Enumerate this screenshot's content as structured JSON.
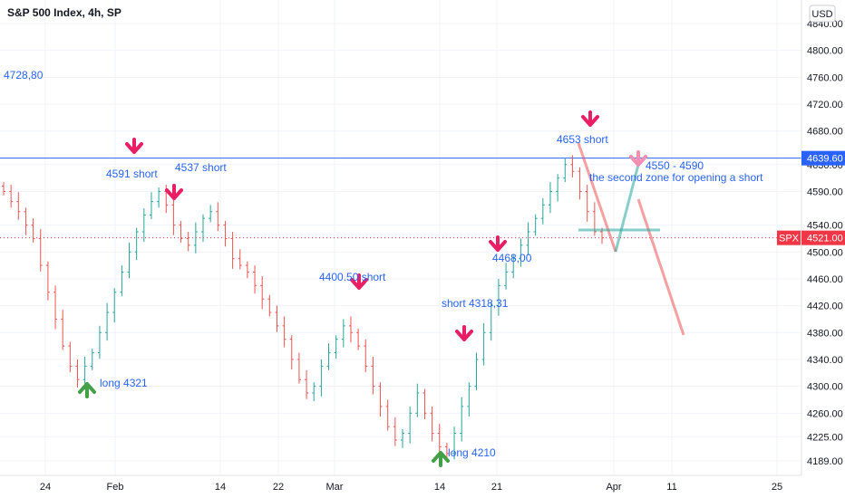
{
  "header": {
    "title": "S&P 500 Index, 4h, SP",
    "currency": "USD"
  },
  "colors": {
    "up": "#26a69a",
    "down": "#ef5350",
    "annotation": "#2962ff",
    "arrow_short": "#e91e63",
    "arrow_long": "#43a047",
    "hline": "#2962ff",
    "current": "#f23645",
    "grid": "#f0f3fa"
  },
  "icons": {
    "short_arrow": "down-arrow-icon",
    "long_arrow": "up-arrow-icon"
  },
  "chart_data": {
    "type": "candlestick",
    "title": "S&P 500 Index, 4h, SP",
    "grid": true,
    "y_axis": {
      "ticks": [
        "4189.00",
        "4225.00",
        "4260.00",
        "4300.00",
        "4340.00",
        "4380.00",
        "4420.00",
        "4460.00",
        "4500.00",
        "4540.00",
        "4590.00",
        "4630.00",
        "4680.00",
        "4720.00",
        "4760.00",
        "4800.00",
        "4840.00"
      ]
    },
    "x_axis": {
      "ticks": [
        "24",
        "Feb",
        "14",
        "22",
        "Mar",
        "14",
        "21",
        "Apr",
        "11",
        "25"
      ]
    },
    "series_close": [
      4590,
      4575,
      4560,
      4540,
      4520,
      4480,
      4440,
      4400,
      4360,
      4330,
      4310,
      4330,
      4350,
      4380,
      4410,
      4440,
      4470,
      4500,
      4530,
      4555,
      4575,
      4590,
      4570,
      4540,
      4520,
      4510,
      4530,
      4550,
      4560,
      4540,
      4520,
      4490,
      4480,
      4470,
      4450,
      4430,
      4410,
      4390,
      4370,
      4340,
      4310,
      4290,
      4300,
      4330,
      4350,
      4370,
      4390,
      4380,
      4360,
      4330,
      4300,
      4270,
      4240,
      4220,
      4230,
      4260,
      4290,
      4260,
      4230,
      4210,
      4200,
      4230,
      4270,
      4300,
      4340,
      4380,
      4420,
      4450,
      4470,
      4490,
      4510,
      4530,
      4550,
      4570,
      4590,
      4610,
      4630,
      4620,
      4590,
      4560,
      4530,
      4521
    ],
    "levels": [
      {
        "label": "4639.60",
        "value": 4639.6
      },
      {
        "label": "4521.00",
        "value": 4521.0,
        "tag": "SPX"
      }
    ],
    "annotations": [
      {
        "text": "4728,80"
      },
      {
        "text": "4591 short"
      },
      {
        "text": "4537 short"
      },
      {
        "text": "4400.50 short"
      },
      {
        "text": "long  4321"
      },
      {
        "text": "short  4318,31"
      },
      {
        "text": "4468,00"
      },
      {
        "text": "long  4210"
      },
      {
        "text": "4653 short"
      },
      {
        "text": "4550 -  4590"
      },
      {
        "text": "the second zone for opening a short"
      }
    ]
  }
}
